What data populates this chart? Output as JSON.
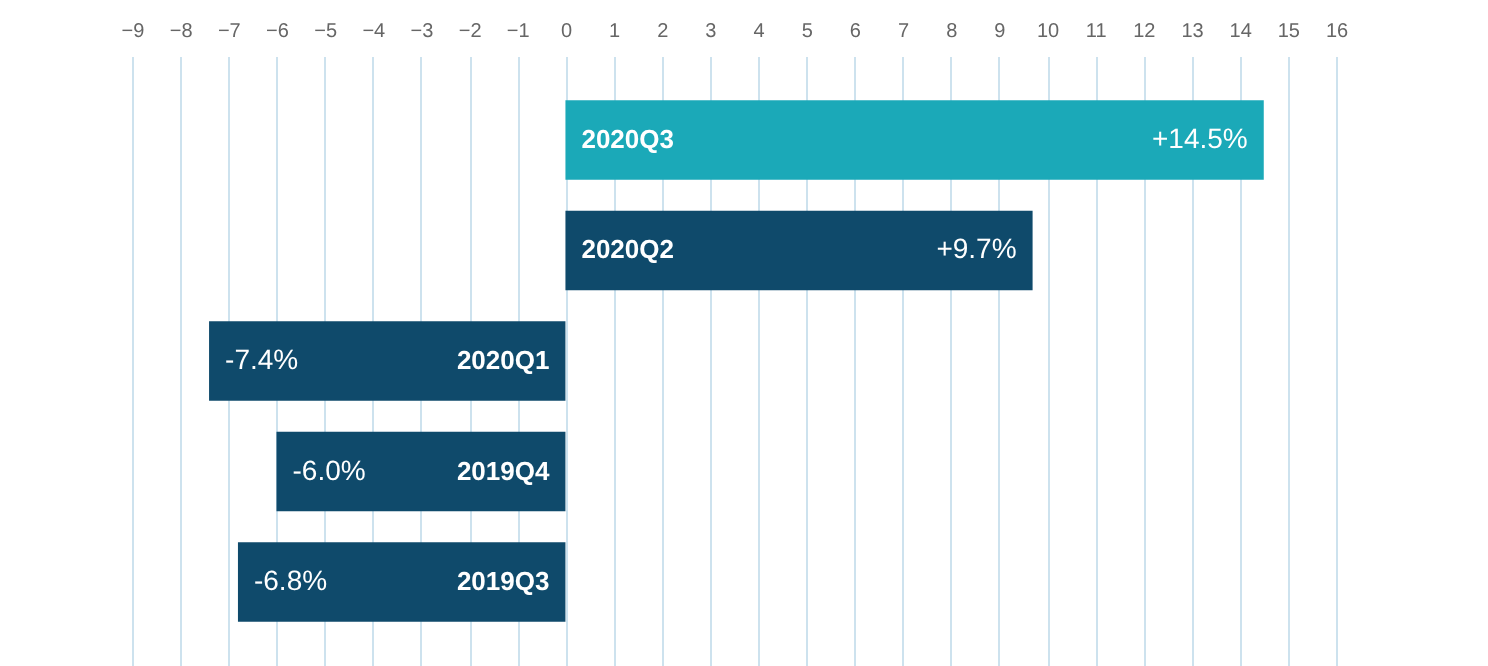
{
  "chart_data": {
    "type": "bar",
    "orientation": "horizontal",
    "categories": [
      "2020Q3",
      "2020Q2",
      "2020Q1",
      "2019Q4",
      "2019Q3"
    ],
    "values": [
      14.5,
      9.7,
      -7.4,
      -6.0,
      -6.8
    ],
    "value_labels": [
      "+14.5%",
      "+9.7%",
      "-7.4%",
      "-6.0%",
      "-6.8%"
    ],
    "colors": [
      "#1ba9b8",
      "#0f4a6b",
      "#0f4a6b",
      "#0f4a6b",
      "#0f4a6b"
    ],
    "xlim": [
      -9,
      16
    ],
    "xticks": [
      -9,
      -8,
      -7,
      -6,
      -5,
      -4,
      -3,
      -2,
      -1,
      0,
      1,
      2,
      3,
      4,
      5,
      6,
      7,
      8,
      9,
      10,
      11,
      12,
      13,
      14,
      15,
      16
    ],
    "grid": true
  }
}
